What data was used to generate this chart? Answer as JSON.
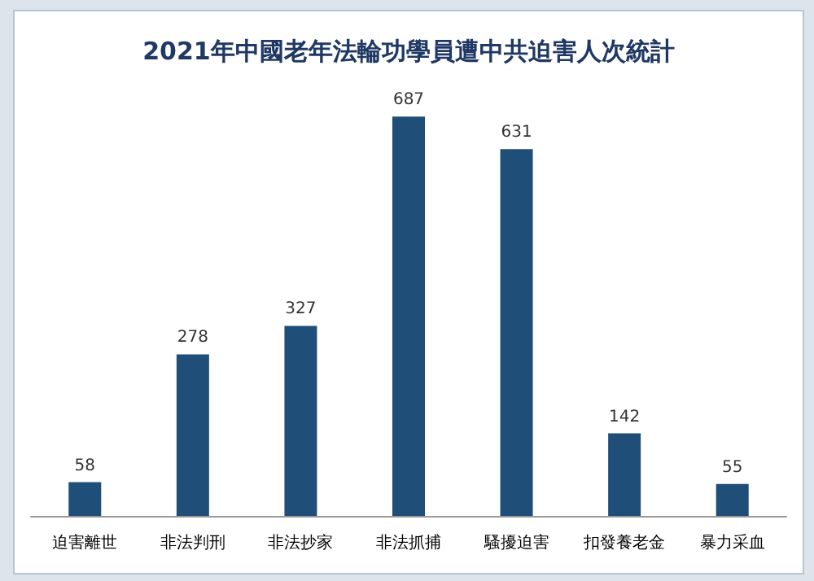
{
  "chart_data": {
    "type": "bar",
    "title": "2021年中國老年法輪功學員遭中共迫害人次統計",
    "categories": [
      "迫害離世",
      "非法判刑",
      "非法抄家",
      "非法抓捕",
      "騷擾迫害",
      "扣發養老金",
      "暴力采血"
    ],
    "values": [
      58,
      278,
      327,
      687,
      631,
      142,
      55
    ],
    "color": "#1f4e79",
    "data_labels": true
  }
}
